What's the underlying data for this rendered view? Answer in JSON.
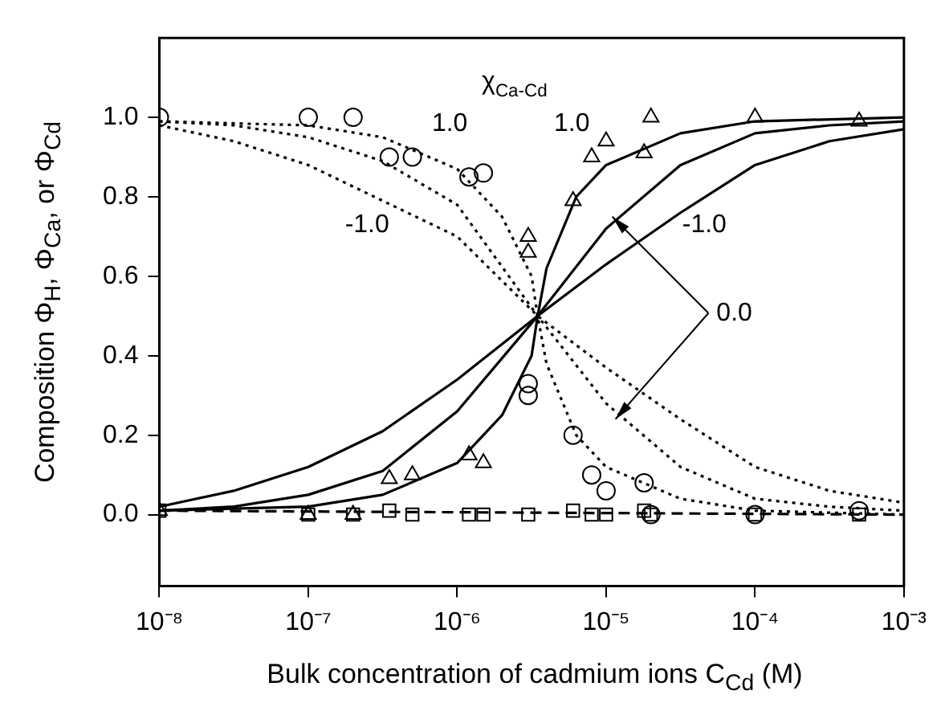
{
  "chart_data": {
    "type": "line",
    "xlabel": "Bulk concentration of cadmium ions C$_{Cd}$ (M)",
    "ylabel": "Composition  Φ$_{H}$, Φ$_{Ca}$, or Φ$_{Cd}$",
    "log": "x",
    "grid": false,
    "legend": false,
    "xlim": [
      1e-08,
      0.001
    ],
    "xticks": [
      {
        "value": 1e-08,
        "label": "10⁻⁸"
      },
      {
        "value": 1e-07,
        "label": "10⁻⁷"
      },
      {
        "value": 1e-06,
        "label": "10⁻⁶"
      },
      {
        "value": 1e-05,
        "label": "10⁻⁵"
      },
      {
        "value": 0.0001,
        "label": "10⁻⁴"
      },
      {
        "value": 0.001,
        "label": "10⁻³"
      }
    ],
    "ylim": [
      -0.18,
      1.2
    ],
    "yticks": [
      {
        "value": 0,
        "label": "0.0"
      },
      {
        "value": 0.2,
        "label": "0.2"
      },
      {
        "value": 0.4,
        "label": "0.4"
      },
      {
        "value": 0.6,
        "label": "0.6"
      },
      {
        "value": 0.8,
        "label": "0.8"
      },
      {
        "value": 1,
        "label": "1.0"
      }
    ],
    "series": [
      {
        "color": "#000000",
        "line_style": "solid",
        "marker": "none",
        "x": [
          1e-08,
          3.16e-08,
          1e-07,
          3.16e-07,
          1e-06,
          3.47e-06,
          1e-05,
          3.16e-05,
          0.0001,
          0.000316,
          0.001
        ],
        "values": [
          0.02,
          0.06,
          0.12,
          0.21,
          0.34,
          0.5,
          0.63,
          0.76,
          0.88,
          0.94,
          0.97
        ]
      },
      {
        "color": "#000000",
        "line_style": "solid",
        "marker": "none",
        "x": [
          1e-08,
          3.16e-08,
          1e-07,
          3.16e-07,
          1e-06,
          3.47e-06,
          1e-05,
          3.16e-05,
          0.0001,
          0.000316,
          0.001
        ],
        "values": [
          0.01,
          0.02,
          0.05,
          0.11,
          0.26,
          0.5,
          0.72,
          0.88,
          0.96,
          0.98,
          0.99
        ]
      },
      {
        "color": "#000000",
        "line_style": "solid",
        "marker": "none",
        "x": [
          1e-08,
          1e-07,
          3.16e-07,
          1e-06,
          2e-06,
          3.16e-06,
          3.47e-06,
          3.98e-06,
          6.3e-06,
          1e-05,
          3.16e-05,
          0.0001,
          0.001
        ],
        "values": [
          0.01,
          0.02,
          0.05,
          0.13,
          0.25,
          0.4,
          0.5,
          0.62,
          0.8,
          0.88,
          0.96,
          0.99,
          1.0
        ]
      },
      {
        "color": "#000000",
        "line_style": "dotted",
        "marker": "none",
        "x": [
          1e-08,
          3.16e-08,
          1e-07,
          3.16e-07,
          1e-06,
          3.47e-06,
          1e-05,
          3.16e-05,
          0.0001,
          0.000316,
          0.001
        ],
        "values": [
          0.98,
          0.94,
          0.88,
          0.79,
          0.7,
          0.5,
          0.37,
          0.24,
          0.12,
          0.06,
          0.03
        ]
      },
      {
        "color": "#000000",
        "line_style": "dotted",
        "marker": "none",
        "x": [
          1e-08,
          3.16e-08,
          1e-07,
          3.16e-07,
          1e-06,
          3.47e-06,
          1e-05,
          3.16e-05,
          0.0001,
          0.000316,
          0.001
        ],
        "values": [
          0.99,
          0.98,
          0.95,
          0.89,
          0.78,
          0.5,
          0.28,
          0.12,
          0.04,
          0.02,
          0.01
        ]
      },
      {
        "color": "#000000",
        "line_style": "dotted",
        "marker": "none",
        "x": [
          1e-08,
          1e-07,
          3.16e-07,
          1e-06,
          2e-06,
          3.16e-06,
          3.47e-06,
          3.98e-06,
          6.3e-06,
          1e-05,
          3.16e-05,
          0.0001,
          0.001
        ],
        "values": [
          0.99,
          0.98,
          0.95,
          0.87,
          0.75,
          0.6,
          0.5,
          0.38,
          0.2,
          0.12,
          0.04,
          0.01,
          0.0
        ]
      },
      {
        "color": "#000000",
        "line_style": "dashed",
        "marker": "none",
        "x": [
          1e-08,
          0.001
        ],
        "values": [
          0.01,
          0.0
        ]
      },
      {
        "type": "scatter",
        "color": "#000000",
        "marker": "circle",
        "x": [
          1e-08,
          1e-07,
          2e-07,
          3.5e-07,
          5e-07,
          1.2e-06,
          1.5e-06,
          3e-06,
          3e-06,
          6e-06,
          8e-06,
          1e-05,
          1.8e-05,
          2e-05,
          0.0001,
          0.0005
        ],
        "values": [
          1.0,
          1.0,
          1.0,
          0.9,
          0.9,
          0.85,
          0.86,
          0.33,
          0.3,
          0.2,
          0.1,
          0.06,
          0.08,
          0.0,
          0.0,
          0.01
        ]
      },
      {
        "type": "scatter",
        "color": "#000000",
        "marker": "triangle",
        "x": [
          1e-08,
          1e-07,
          2e-07,
          3.5e-07,
          5e-07,
          1.2e-06,
          1.5e-06,
          3e-06,
          3e-06,
          6e-06,
          8e-06,
          1e-05,
          1.8e-05,
          2e-05,
          0.0001,
          0.0005
        ],
        "values": [
          0.01,
          0.0,
          0.0,
          0.09,
          0.1,
          0.15,
          0.13,
          0.7,
          0.66,
          0.79,
          0.9,
          0.94,
          0.91,
          1.0,
          1.0,
          0.99
        ]
      },
      {
        "type": "scatter",
        "color": "#000000",
        "marker": "square",
        "x": [
          1e-08,
          1e-07,
          2e-07,
          3.5e-07,
          5e-07,
          1.2e-06,
          1.5e-06,
          3e-06,
          6e-06,
          8e-06,
          1e-05,
          1.8e-05,
          2e-05,
          0.0001,
          0.0005
        ],
        "values": [
          0.01,
          0.0,
          0.0,
          0.01,
          0.0,
          0.0,
          0.0,
          0.0,
          0.01,
          0.0,
          0.0,
          0.01,
          0.0,
          0.0,
          0.0
        ]
      }
    ],
    "annotations": [
      "χ$_{Ca-Cd}$",
      "1.0",
      "1.0",
      "-1.0",
      "-1.0",
      {
        "text": "0.0",
        "x": 1.1e-05,
        "y": 0.75
      }
    ]
  }
}
